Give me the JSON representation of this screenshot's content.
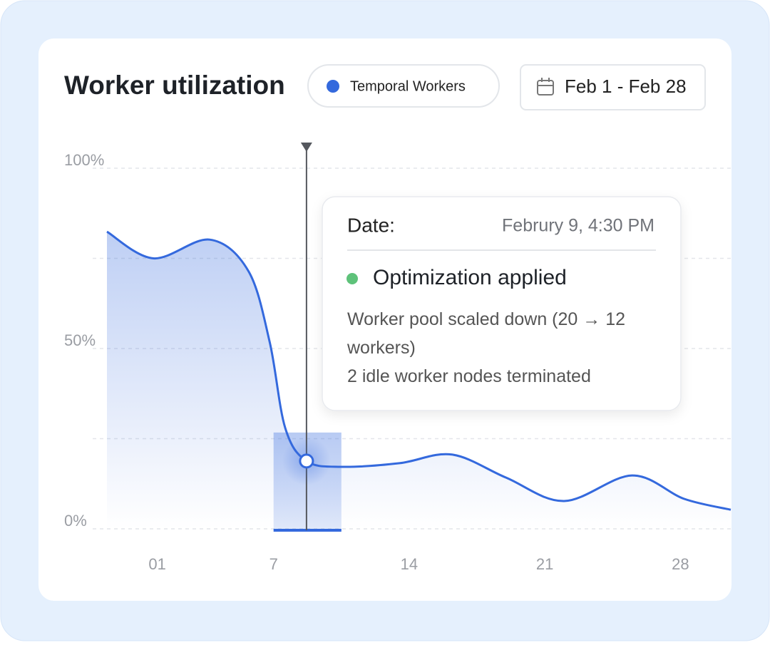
{
  "chart_data": {
    "type": "line",
    "title": "Worker utilization",
    "date_range": "Feb 1 - Feb 28",
    "series": [
      {
        "name": "Temporal Workers",
        "color": "#3469dd",
        "x": [
          -1.6,
          0.8,
          3.7,
          5.7,
          6.8,
          7.6,
          8.7,
          10.5,
          13.5,
          16.2,
          19.0,
          22.0,
          25.5,
          28.2,
          30.6
        ],
        "values": [
          82.4,
          75,
          80.2,
          71.5,
          51.8,
          28,
          18.8,
          17.2,
          18.2,
          20.6,
          14.2,
          7.7,
          14.8,
          8.3,
          5.3
        ]
      }
    ],
    "xlim": [
      -1.6,
      30.6
    ],
    "xticks": [
      {
        "value": 1,
        "label": "01"
      },
      7,
      14,
      21,
      28
    ],
    "ylim": [
      0,
      100
    ],
    "yticks": [
      {
        "value": 0,
        "label": "0%"
      },
      {
        "value": 50,
        "label": "50%"
      },
      {
        "value": 100,
        "label": "100%"
      }
    ],
    "ygrid": [
      0,
      25,
      50,
      75,
      100
    ],
    "highlight": [
      7,
      10.5
    ],
    "marker_x": 8.7,
    "marker_value": 18.8,
    "tooltip": {
      "date_label": "Date:",
      "date": "Februry 9, 4:30 PM",
      "event": "Optimization applied",
      "event_color": "#5ec27a",
      "lines": [
        "Worker pool scaled down (20 → 12 workers)",
        "2 idle worker nodes terminated"
      ]
    }
  }
}
